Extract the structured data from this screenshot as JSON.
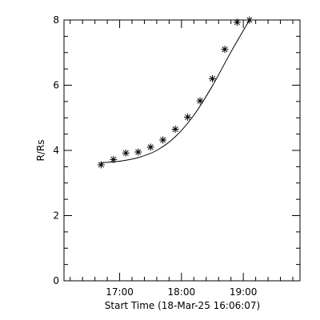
{
  "chart_data": {
    "type": "scatter",
    "title": "",
    "xlabel": "Start Time (18-Mar-25 16:06:07)",
    "ylabel": "R/Rs",
    "x_unit": "time (HH:MM)",
    "xlim": [
      "16:06",
      "19:55"
    ],
    "ylim": [
      0,
      8
    ],
    "x_ticks": [
      "17:00",
      "18:00",
      "19:00"
    ],
    "y_ticks": [
      "0",
      "2",
      "4",
      "6",
      "8"
    ],
    "grid": false,
    "legend": "none",
    "series": [
      {
        "marker": "asterisk",
        "x": [
          "16:42",
          "16:54",
          "17:06",
          "17:18",
          "17:30",
          "17:42",
          "17:54",
          "18:06",
          "18:18",
          "18:30",
          "18:42",
          "18:54",
          "19:06"
        ],
        "y": [
          3.56,
          3.72,
          3.92,
          3.95,
          4.1,
          4.32,
          4.65,
          5.02,
          5.52,
          6.2,
          7.1,
          7.93,
          8.0
        ]
      }
    ],
    "fit": {
      "style": "solid-line",
      "x": [
        "16:42",
        "17:00",
        "17:18",
        "17:36",
        "17:54",
        "18:12",
        "18:30",
        "18:48",
        "19:06"
      ],
      "y": [
        3.62,
        3.67,
        3.78,
        4.0,
        4.42,
        5.08,
        5.98,
        7.02,
        8.0
      ]
    }
  }
}
